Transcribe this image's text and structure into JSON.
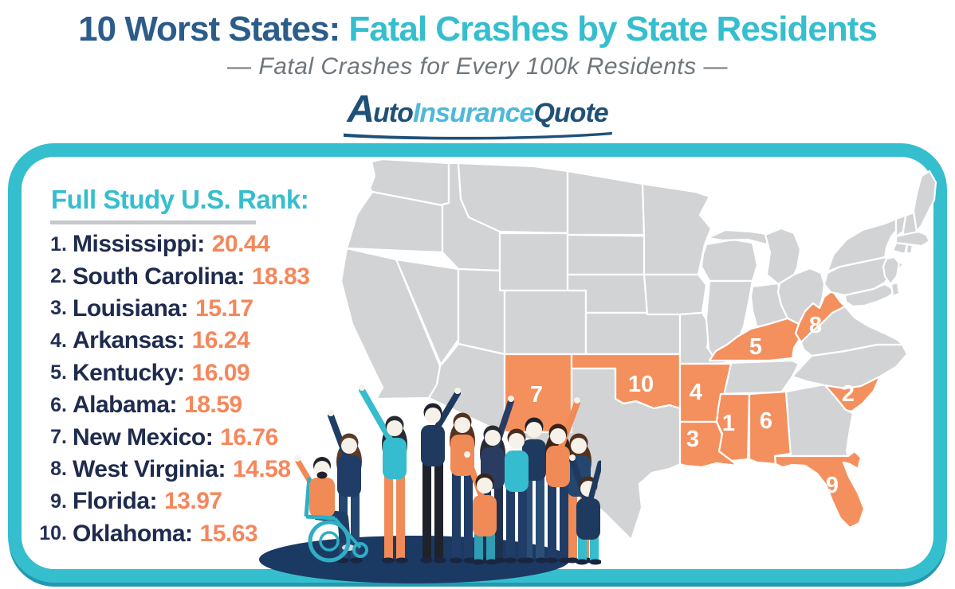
{
  "title": {
    "prefix": "10 Worst States: ",
    "highlight": "Fatal Crashes by State Residents"
  },
  "subtitle": "— Fatal Crashes for Every 100k Residents —",
  "logo": {
    "letter_a": "A",
    "uto": "uto",
    "insurance": "Insurance",
    "quote": "Quote"
  },
  "panel": {
    "heading": "Full Study U.S. Rank:"
  },
  "ranking": [
    {
      "rank": "1.",
      "state": "Mississippi:",
      "value": "20.44"
    },
    {
      "rank": "2.",
      "state": "South Carolina:",
      "value": "18.83"
    },
    {
      "rank": "3.",
      "state": "Louisiana:",
      "value": "15.17"
    },
    {
      "rank": "4.",
      "state": "Arkansas:",
      "value": "16.24"
    },
    {
      "rank": "5.",
      "state": "Kentucky:",
      "value": "16.09"
    },
    {
      "rank": "6.",
      "state": "Alabama:",
      "value": "18.59"
    },
    {
      "rank": "7.",
      "state": "New Mexico:",
      "value": "16.76"
    },
    {
      "rank": "8.",
      "state": "West Virginia:",
      "value": "14.58"
    },
    {
      "rank": "9.",
      "state": "Florida:",
      "value": "13.97"
    },
    {
      "rank": "10.",
      "state": "Oklahoma:",
      "value": "15.63"
    }
  ],
  "map": {
    "markers": [
      "1",
      "2",
      "3",
      "4",
      "5",
      "6",
      "7",
      "8",
      "9",
      "10"
    ]
  },
  "colors": {
    "accent_teal": "#35BECE",
    "title_navy": "#2B5C8A",
    "list_navy": "#1F2B4D",
    "orange": "#F5875C",
    "map_gray": "#D2D3D5",
    "map_orange": "#F4905E",
    "logo_dark_blue": "#1F5078",
    "logo_light_blue": "#4FB8DB",
    "subtitle_gray": "#6F767C"
  },
  "chart_data": {
    "type": "table",
    "title": "10 Worst States: Fatal Crashes by State Residents",
    "subtitle": "Fatal Crashes for Every 100k Residents",
    "columns": [
      "U.S. Rank",
      "State",
      "Fatal Crashes per 100k Residents"
    ],
    "rows": [
      [
        1,
        "Mississippi",
        20.44
      ],
      [
        2,
        "South Carolina",
        18.83
      ],
      [
        3,
        "Louisiana",
        15.17
      ],
      [
        4,
        "Arkansas",
        16.24
      ],
      [
        5,
        "Kentucky",
        16.09
      ],
      [
        6,
        "Alabama",
        18.59
      ],
      [
        7,
        "New Mexico",
        16.76
      ],
      [
        8,
        "West Virginia",
        14.58
      ],
      [
        9,
        "Florida",
        13.97
      ],
      [
        10,
        "Oklahoma",
        15.63
      ]
    ],
    "map_annotation": "US map with the 10 ranked states highlighted orange and labeled with white rank numbers"
  }
}
